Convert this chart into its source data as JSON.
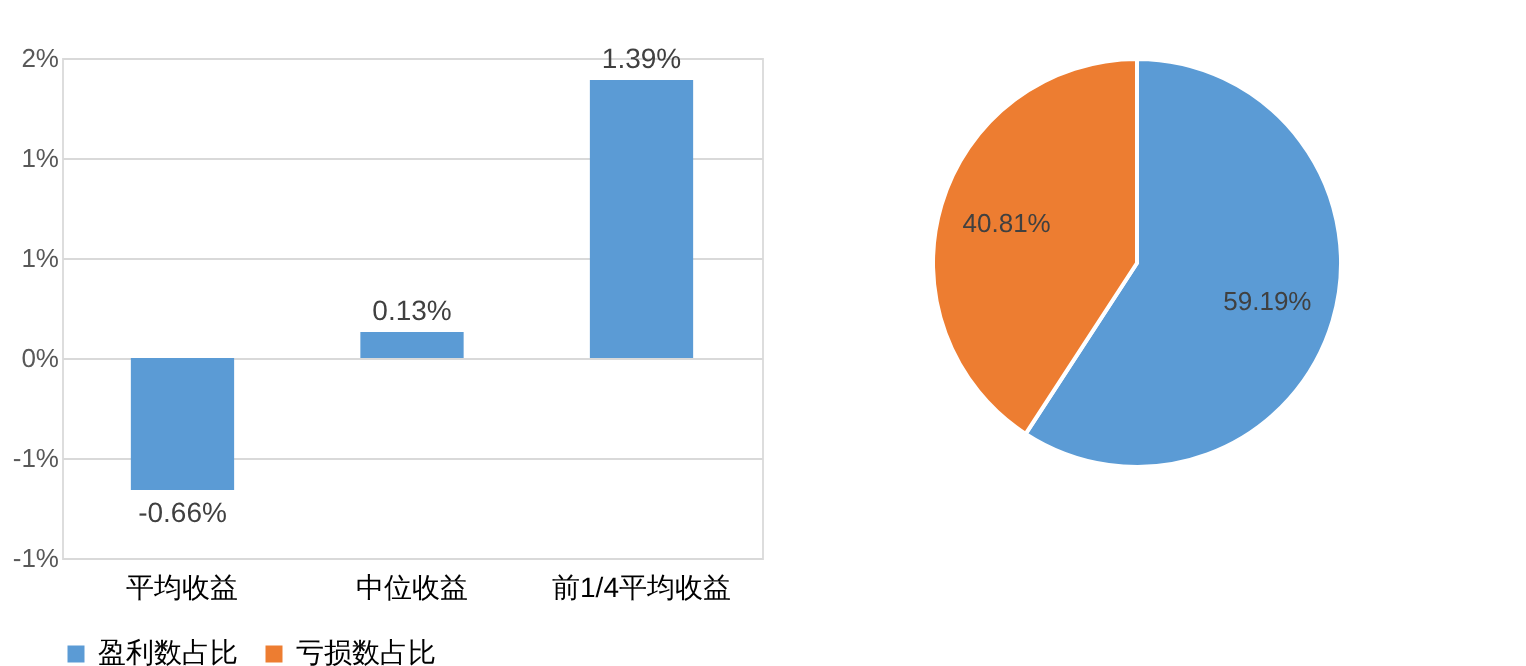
{
  "chart_data": [
    {
      "type": "bar",
      "categories": [
        "平均收益",
        "中位收益",
        "前1/4平均收益"
      ],
      "values": [
        -0.66,
        0.13,
        1.39
      ],
      "color": "#5b9bd5",
      "value_labels": [
        "-0.66%",
        "0.13%",
        "1.39%"
      ],
      "ylim": [
        -1.0,
        1.5
      ],
      "yticks": [
        {
          "value": -1.0,
          "label": "-1%"
        },
        {
          "value": -0.5,
          "label": "-1%"
        },
        {
          "value": 0,
          "label": "0%"
        },
        {
          "value": 0.5,
          "label": "1%"
        },
        {
          "value": 1.0,
          "label": "1%"
        },
        {
          "value": 1.5,
          "label": "2%"
        }
      ],
      "grid": "y"
    },
    {
      "type": "pie",
      "categories": [
        "盈利数占比",
        "亏损数占比"
      ],
      "values": [
        59.19,
        40.81
      ],
      "colors": [
        "#5b9bd5",
        "#ed7d31"
      ],
      "value_labels": [
        "59.19%",
        "40.81%"
      ],
      "legend": "bottom"
    }
  ]
}
